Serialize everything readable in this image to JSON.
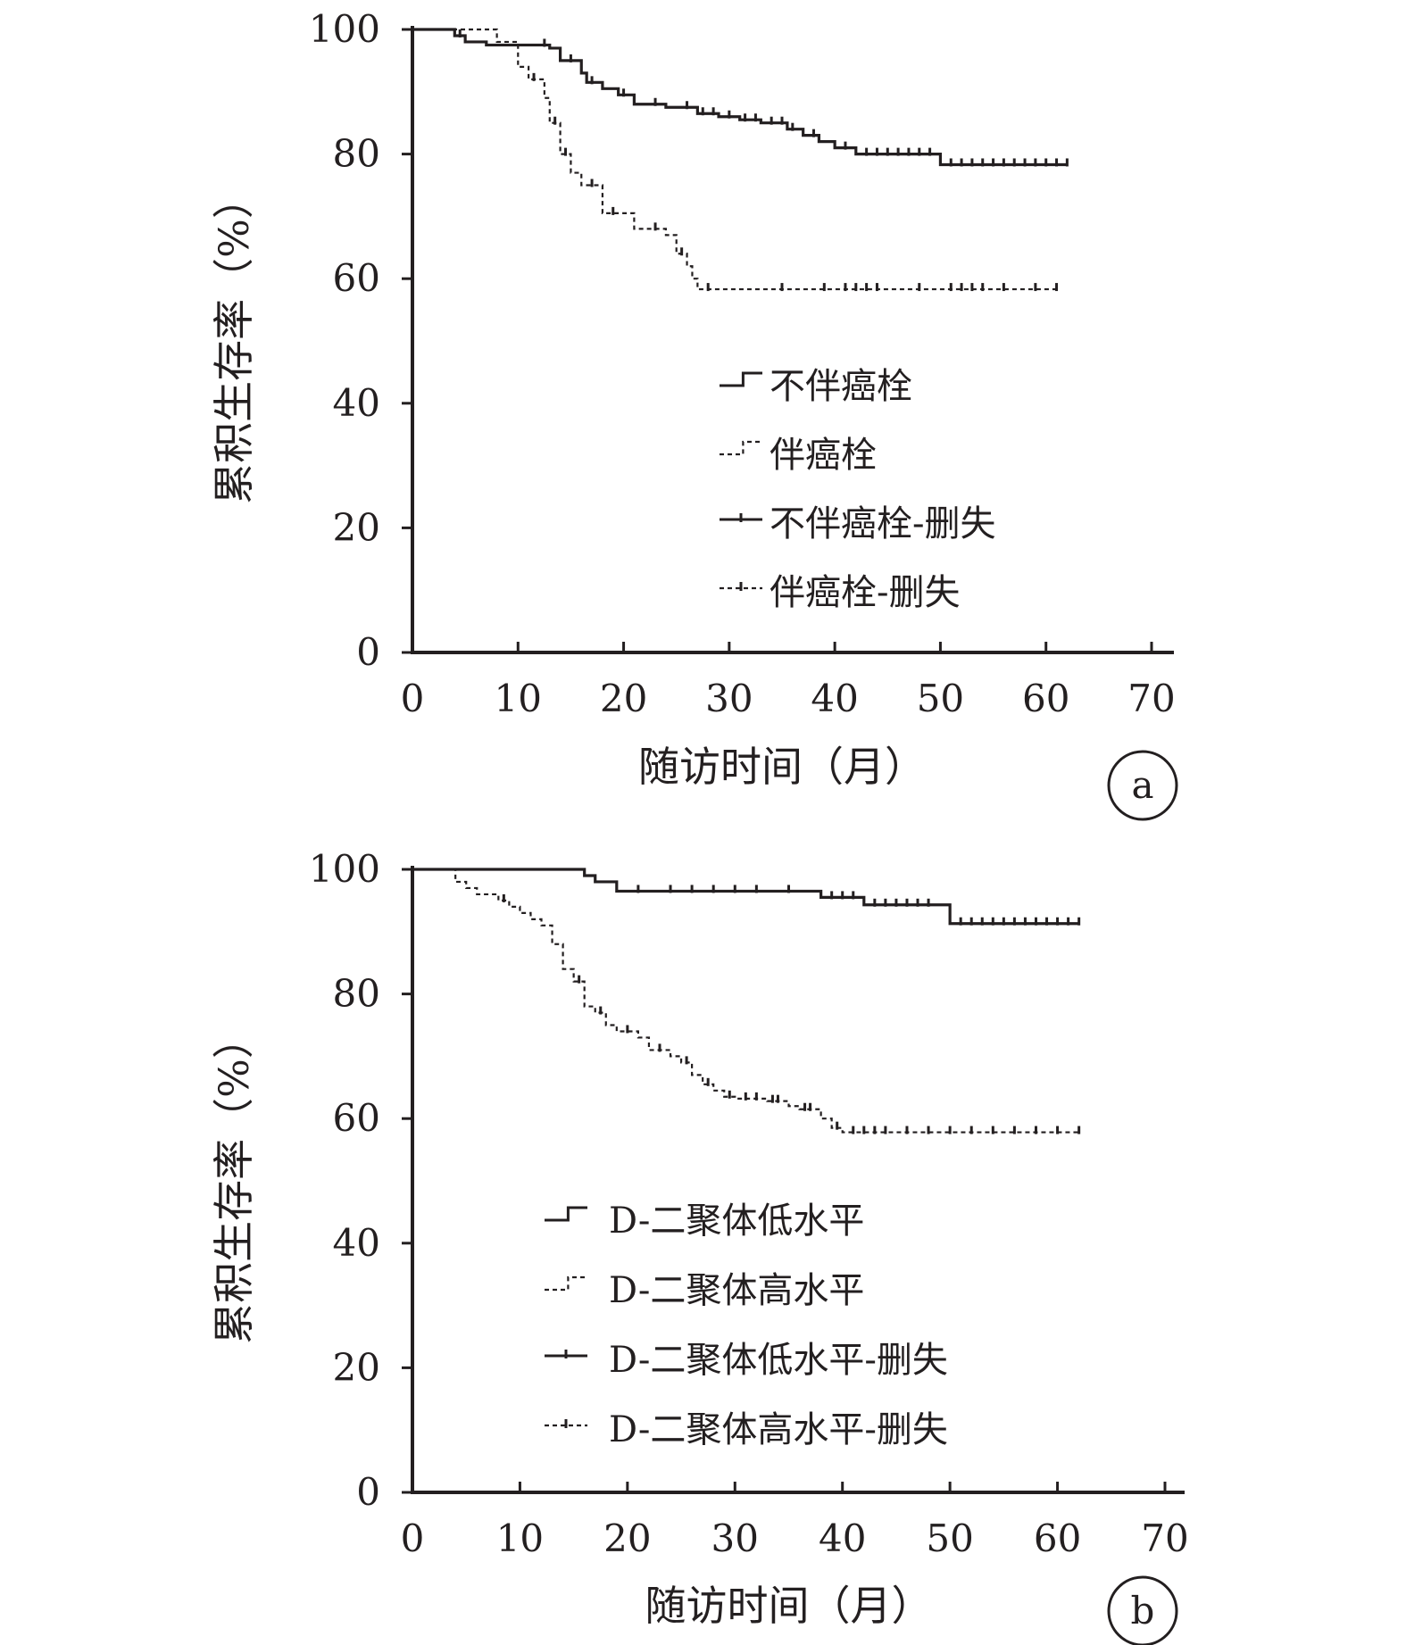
{
  "chart_data": [
    {
      "type": "line",
      "step": true,
      "panel_label": "a",
      "xlabel": "随访时间（月）",
      "ylabel": "累积生存率（%）",
      "xlim": [
        0,
        70
      ],
      "ylim": [
        0,
        100
      ],
      "x_ticks": [
        "0",
        "10",
        "20",
        "30",
        "40",
        "50",
        "60",
        "70"
      ],
      "y_ticks": [
        "0",
        "20",
        "40",
        "60",
        "80",
        "100"
      ],
      "grid": false,
      "legend_position": "center-right",
      "legend": [
        "不伴癌栓",
        "伴癌栓",
        "不伴癌栓-删失",
        "伴癌栓-删失"
      ],
      "series": [
        {
          "name": "不伴癌栓",
          "style": "solid",
          "points": [
            [
              0,
              100
            ],
            [
              4,
              99
            ],
            [
              5,
              98
            ],
            [
              7,
              97.5
            ],
            [
              13,
              97
            ],
            [
              14,
              95
            ],
            [
              16,
              93
            ],
            [
              16.5,
              91.5
            ],
            [
              18,
              90.5
            ],
            [
              19.5,
              89.5
            ],
            [
              21,
              88
            ],
            [
              24,
              87.5
            ],
            [
              27,
              86.5
            ],
            [
              29,
              86
            ],
            [
              31,
              85.5
            ],
            [
              33,
              85
            ],
            [
              35.5,
              84
            ],
            [
              37,
              83
            ],
            [
              38.5,
              82
            ],
            [
              40,
              81
            ],
            [
              42,
              80
            ],
            [
              50,
              78.3
            ],
            [
              62,
              78.3
            ]
          ],
          "censored": [
            4.5,
            12.5,
            15,
            17,
            20,
            23,
            26,
            27.5,
            28.5,
            30,
            31.5,
            32.5,
            34,
            35,
            36,
            38,
            41,
            43,
            44,
            45,
            46,
            47,
            48,
            49,
            51,
            52,
            53,
            54,
            55,
            56,
            57,
            58,
            59,
            60,
            61,
            62
          ]
        },
        {
          "name": "伴癌栓",
          "style": "dashed",
          "points": [
            [
              0,
              100
            ],
            [
              8,
              98
            ],
            [
              10,
              94
            ],
            [
              11,
              92
            ],
            [
              12.5,
              89
            ],
            [
              13,
              85
            ],
            [
              14,
              80
            ],
            [
              15,
              77
            ],
            [
              16,
              75
            ],
            [
              18,
              70.5
            ],
            [
              21,
              68
            ],
            [
              24,
              67
            ],
            [
              25,
              64
            ],
            [
              26,
              62
            ],
            [
              26.5,
              60
            ],
            [
              27,
              58.3
            ],
            [
              61,
              58.3
            ]
          ],
          "censored": [
            11.5,
            13.5,
            14.5,
            17,
            19,
            23,
            25.5,
            28,
            35,
            39,
            41,
            42,
            43,
            44,
            48,
            51,
            52,
            53,
            54,
            56,
            59,
            61
          ]
        }
      ]
    },
    {
      "type": "line",
      "step": true,
      "panel_label": "b",
      "xlabel": "随访时间（月）",
      "ylabel": "累积生存率（%）",
      "xlim": [
        0,
        70
      ],
      "ylim": [
        0,
        100
      ],
      "x_ticks": [
        "0",
        "10",
        "20",
        "30",
        "40",
        "50",
        "60",
        "70"
      ],
      "y_ticks": [
        "0",
        "20",
        "40",
        "60",
        "80",
        "100"
      ],
      "grid": false,
      "legend_position": "center",
      "legend": [
        "D-二聚体低水平",
        "D-二聚体高水平",
        "D-二聚体低水平-删失",
        "D-二聚体高水平-删失"
      ],
      "series": [
        {
          "name": "D-二聚体低水平",
          "style": "solid",
          "points": [
            [
              0,
              100
            ],
            [
              16,
              99
            ],
            [
              17,
              98
            ],
            [
              19,
              96.5
            ],
            [
              38,
              95.5
            ],
            [
              42,
              94.3
            ],
            [
              50,
              91.3
            ],
            [
              62,
              91.3
            ]
          ],
          "censored": [
            21,
            24,
            26,
            28,
            30,
            32,
            35,
            39,
            40,
            41,
            43,
            44,
            45,
            46,
            47,
            48,
            51,
            52,
            53,
            54,
            55,
            56,
            57,
            58,
            59,
            60,
            61,
            62
          ]
        },
        {
          "name": "D-二聚体高水平",
          "style": "dashed",
          "points": [
            [
              0,
              100
            ],
            [
              4,
              98
            ],
            [
              5,
              97
            ],
            [
              6,
              96
            ],
            [
              8,
              95
            ],
            [
              9,
              94
            ],
            [
              10,
              93
            ],
            [
              11,
              92
            ],
            [
              12,
              91
            ],
            [
              13,
              88
            ],
            [
              14,
              84
            ],
            [
              15,
              82
            ],
            [
              16,
              78
            ],
            [
              17,
              77
            ],
            [
              18,
              75
            ],
            [
              19,
              74
            ],
            [
              21,
              73
            ],
            [
              22,
              71
            ],
            [
              24,
              70
            ],
            [
              25,
              69
            ],
            [
              26,
              67
            ],
            [
              27,
              65.5
            ],
            [
              28,
              64.5
            ],
            [
              29,
              63.5
            ],
            [
              30,
              63.2
            ],
            [
              33,
              62.8
            ],
            [
              35,
              62
            ],
            [
              36,
              61.5
            ],
            [
              38,
              60
            ],
            [
              39,
              58.5
            ],
            [
              40,
              57.8
            ],
            [
              62,
              57.8
            ]
          ],
          "censored": [
            8.5,
            15.5,
            17.5,
            20,
            23,
            25.5,
            27.5,
            29.5,
            31,
            32,
            33.5,
            34,
            36.5,
            37,
            39.5,
            41,
            42,
            43,
            44,
            46,
            48,
            50,
            52,
            54,
            56,
            58,
            60,
            62
          ]
        }
      ]
    }
  ]
}
